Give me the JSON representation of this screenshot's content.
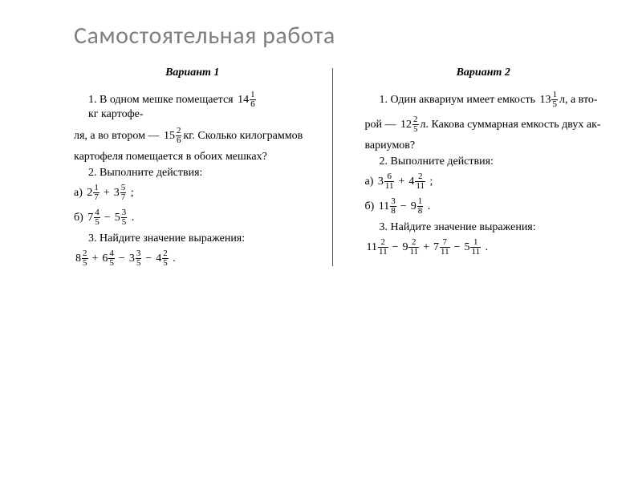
{
  "title": "Самостоятельная работа",
  "variants": [
    {
      "title": "Вариант 1",
      "q1": {
        "l1a": "1. В одном мешке помещается ",
        "m1": {
          "w": "14",
          "n": "1",
          "d": "6"
        },
        "l1b": "кг картофе-",
        "l2a": "ля, а во втором — ",
        "m2": {
          "w": "15",
          "n": "2",
          "d": "6"
        },
        "l2b": "кг. Сколько килограммов",
        "l3": "картофеля помещается в обоих мешках?"
      },
      "q2": {
        "head": "2. Выполните действия:",
        "a_lbl": "а) ",
        "a1": {
          "w": "2",
          "n": "1",
          "d": "7"
        },
        "a_op": "+",
        "a2": {
          "w": "3",
          "n": "5",
          "d": "7"
        },
        "a_end": " ;",
        "b_lbl": "б) ",
        "b1": {
          "w": "7",
          "n": "4",
          "d": "5"
        },
        "b_op": "−",
        "b2": {
          "w": "5",
          "n": "3",
          "d": "5"
        },
        "b_end": " ."
      },
      "q3": {
        "head": "3. Найдите значение выражения:",
        "t1": {
          "w": "8",
          "n": "2",
          "d": "5"
        },
        "o1": "+",
        "t2": {
          "w": "6",
          "n": "4",
          "d": "5"
        },
        "o2": "−",
        "t3": {
          "w": "3",
          "n": "3",
          "d": "5"
        },
        "o3": "−",
        "t4": {
          "w": "4",
          "n": "2",
          "d": "5"
        },
        "end": " ."
      }
    },
    {
      "title": "Вариант 2",
      "q1": {
        "l1a": "1. Один аквариум имеет емкость ",
        "m1": {
          "w": "13",
          "n": "1",
          "d": "5"
        },
        "l1b": "л, а вто-",
        "l2a": "рой — ",
        "m2": {
          "w": "12",
          "n": "2",
          "d": "5"
        },
        "l2b": "л. Какова суммарная емкость двух ак-",
        "l3": "вариумов?"
      },
      "q2": {
        "head": "2. Выполните действия:",
        "a_lbl": "а) ",
        "a1": {
          "w": "3",
          "n": "6",
          "d": "11"
        },
        "a_op": "+",
        "a2": {
          "w": "4",
          "n": "2",
          "d": "11"
        },
        "a_end": " ;",
        "b_lbl": "б) ",
        "b1": {
          "w": "11",
          "n": "3",
          "d": "8"
        },
        "b_op": "−",
        "b2": {
          "w": "9",
          "n": "1",
          "d": "8"
        },
        "b_end": " ."
      },
      "q3": {
        "head": "3. Найдите значение выражения:",
        "t1": {
          "w": "11",
          "n": "2",
          "d": "11"
        },
        "o1": "−",
        "t2": {
          "w": "9",
          "n": "2",
          "d": "11"
        },
        "o2": "+",
        "t3": {
          "w": "7",
          "n": "7",
          "d": "11"
        },
        "o3": "−",
        "t4": {
          "w": "5",
          "n": "1",
          "d": "11"
        },
        "end": " ."
      }
    }
  ]
}
